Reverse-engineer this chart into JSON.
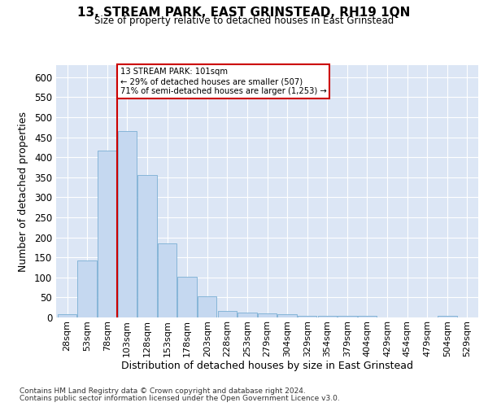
{
  "title": "13, STREAM PARK, EAST GRINSTEAD, RH19 1QN",
  "subtitle": "Size of property relative to detached houses in East Grinstead",
  "xlabel": "Distribution of detached houses by size in East Grinstead",
  "ylabel": "Number of detached properties",
  "footnote1": "Contains HM Land Registry data © Crown copyright and database right 2024.",
  "footnote2": "Contains public sector information licensed under the Open Government Licence v3.0.",
  "annotation_line1": "13 STREAM PARK: 101sqm",
  "annotation_line2": "← 29% of detached houses are smaller (507)",
  "annotation_line3": "71% of semi-detached houses are larger (1,253) →",
  "bar_color": "#c5d8f0",
  "bar_edge_color": "#7aafd4",
  "vline_color": "#cc0000",
  "background_color": "#dce6f5",
  "grid_color": "#ffffff",
  "ylim": [
    0,
    630
  ],
  "yticks": [
    0,
    50,
    100,
    150,
    200,
    250,
    300,
    350,
    400,
    450,
    500,
    550,
    600
  ],
  "bins": [
    "28sqm",
    "53sqm",
    "78sqm",
    "103sqm",
    "128sqm",
    "153sqm",
    "178sqm",
    "203sqm",
    "228sqm",
    "253sqm",
    "279sqm",
    "304sqm",
    "329sqm",
    "354sqm",
    "379sqm",
    "404sqm",
    "429sqm",
    "454sqm",
    "479sqm",
    "504sqm",
    "529sqm"
  ],
  "values": [
    9,
    143,
    417,
    465,
    355,
    185,
    102,
    53,
    17,
    13,
    10,
    9,
    5,
    4,
    4,
    4,
    0,
    0,
    0,
    5,
    0
  ],
  "vline_bin_index": 3
}
